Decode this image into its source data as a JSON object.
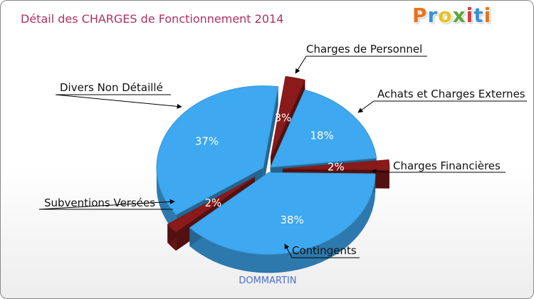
{
  "chart_data": {
    "type": "pie",
    "title": "Détail des CHARGES de Fonctionnement 2014",
    "location": "DOMMARTIN",
    "slices": [
      {
        "label": "Charges de Personnel",
        "value": 3,
        "value_label": "3%",
        "color": "#8b1a1a"
      },
      {
        "label": "Achats et Charges Externes",
        "value": 18,
        "value_label": "18%",
        "color": "#3ea8f0"
      },
      {
        "label": "Charges Financières",
        "value": 2,
        "value_label": "2%",
        "color": "#8b1a1a"
      },
      {
        "label": "Contingents",
        "value": 38,
        "value_label": "38%",
        "color": "#3ea8f0"
      },
      {
        "label": "Subventions Versées",
        "value": 2,
        "value_label": "2%",
        "color": "#8b1a1a"
      },
      {
        "label": "Divers Non Détaillé",
        "value": 37,
        "value_label": "37%",
        "color": "#3ea8f0"
      }
    ]
  },
  "logo": {
    "letters": [
      "P",
      "r",
      "o",
      "x",
      "i",
      "t",
      "i"
    ],
    "colors": [
      "#e8731c",
      "#3b8fd9",
      "#e8c31c",
      "#5aa83a",
      "#d93b3b",
      "#3b8fd9",
      "#e8731c"
    ]
  }
}
